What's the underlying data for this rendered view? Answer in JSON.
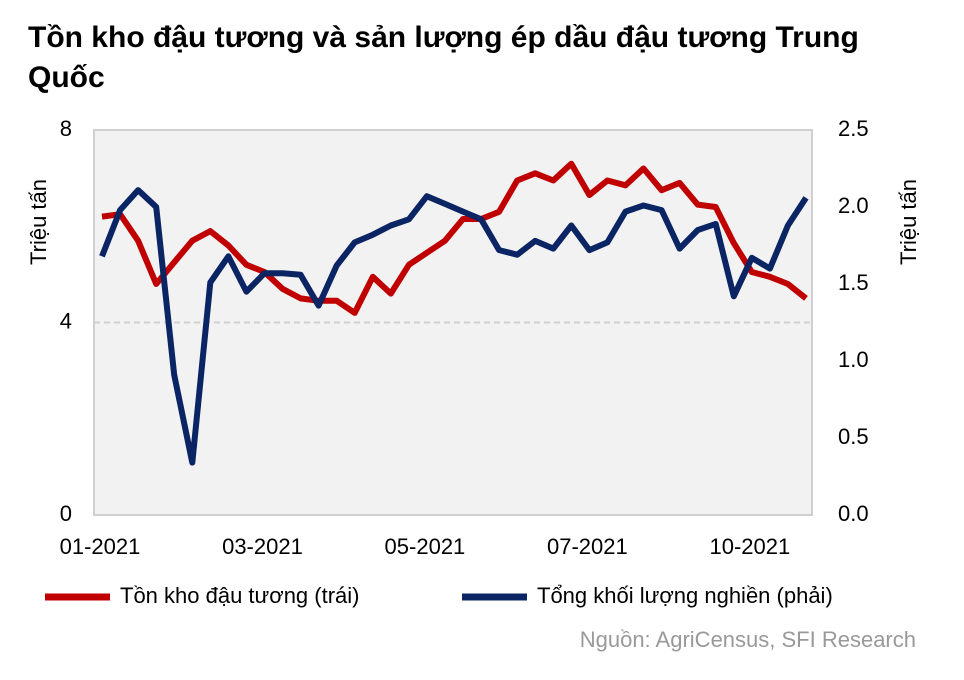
{
  "chart_data": {
    "type": "line",
    "title": "Tồn kho đậu tương và sản lượng ép dầu đậu tương Trung Quốc",
    "y_label": "Triệu tấn",
    "y2_label": "Triệu tấn",
    "source": "Nguồn:  AgriCensus, SFI Research",
    "categories": [
      "01-2021",
      null,
      null,
      null,
      null,
      null,
      null,
      null,
      null,
      "03-2021",
      null,
      null,
      null,
      null,
      null,
      null,
      null,
      null,
      "05-2021",
      null,
      null,
      null,
      null,
      null,
      null,
      null,
      null,
      "07-2021",
      null,
      null,
      null,
      null,
      null,
      null,
      null,
      null,
      "10-2021",
      null,
      null,
      null
    ],
    "ylim": [
      0,
      8
    ],
    "yticks": [
      0,
      4,
      8
    ],
    "y2lim": [
      0,
      2.5
    ],
    "y2ticks": [
      {
        "value": 0,
        "label": "0.0"
      },
      0.5,
      {
        "value": 1,
        "label": "1.0"
      },
      1.5,
      {
        "value": 2,
        "label": "2.0"
      },
      2.5
    ],
    "grid": true,
    "series": [
      {
        "name": "Tồn kho đậu tương (trái)",
        "color": "#c00000",
        "values": [
          6.2,
          6.25,
          5.7,
          4.8,
          5.25,
          5.7,
          5.9,
          5.6,
          5.2,
          5.05,
          4.7,
          4.5,
          4.45,
          4.45,
          4.2,
          4.95,
          4.6,
          5.2,
          5.45,
          5.7,
          6.15,
          6.15,
          6.3,
          6.95,
          7.1,
          6.95,
          7.3,
          6.65,
          6.95,
          6.85,
          7.2,
          6.75,
          6.9,
          6.45,
          6.4,
          5.65,
          5.05,
          4.95,
          4.8,
          4.5
        ]
      },
      {
        "name": "Tổng khối lượng nghiền (phải)",
        "color": "#0b2463",
        "axis": "y2",
        "values": [
          1.68,
          1.98,
          2.11,
          2.0,
          0.91,
          0.34,
          1.51,
          1.68,
          1.45,
          1.57,
          1.57,
          1.56,
          1.36,
          1.62,
          1.77,
          1.82,
          1.88,
          1.92,
          2.07,
          2.02,
          1.97,
          1.92,
          1.72,
          1.69,
          1.78,
          1.73,
          1.88,
          1.72,
          1.77,
          1.97,
          2.01,
          1.98,
          1.73,
          1.85,
          1.89,
          1.42,
          1.67,
          1.6,
          1.88,
          2.06
        ]
      }
    ]
  }
}
